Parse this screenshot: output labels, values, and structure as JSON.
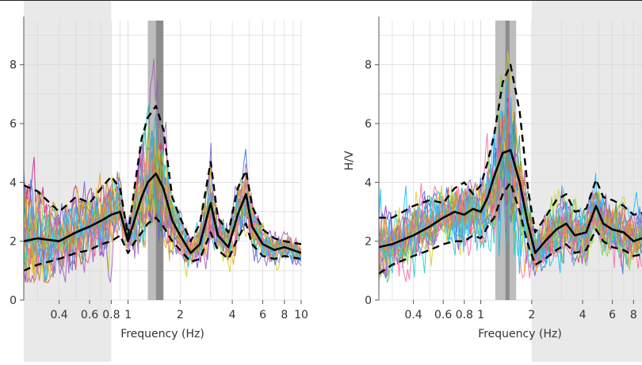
{
  "chart_data": [
    {
      "type": "line",
      "xlabel": "Frequency (Hz)",
      "ylabel": "",
      "xscale": "log",
      "xlim": [
        0.25,
        10
      ],
      "ylim": [
        0,
        9.5
      ],
      "grid": true,
      "x_ticks": [
        0.4,
        0.6,
        0.8,
        1,
        2,
        4,
        6,
        8,
        10
      ],
      "x_tick_labels": [
        "0.4",
        "0.6",
        "0.8",
        "1",
        "2",
        "4",
        "6",
        "8",
        "10"
      ],
      "y_ticks": [
        0,
        2,
        4,
        6,
        8
      ],
      "y_tick_labels": [
        "0",
        "2",
        "4",
        "6",
        "8"
      ],
      "shaded_ranges": [
        [
          0.25,
          0.8
        ]
      ],
      "peak_band": {
        "x": [
          1.3,
          1.6
        ],
        "core": [
          1.45,
          1.6
        ]
      },
      "series": [
        {
          "role": "mean",
          "style": "solid",
          "x": [
            0.25,
            0.3,
            0.4,
            0.5,
            0.6,
            0.7,
            0.8,
            0.9,
            1.0,
            1.1,
            1.2,
            1.3,
            1.45,
            1.6,
            1.8,
            2.0,
            2.3,
            2.6,
            3.0,
            3.3,
            3.8,
            4.3,
            4.8,
            5.2,
            6.0,
            7.0,
            8.0,
            10.0
          ],
          "values": [
            2.0,
            2.1,
            2.0,
            2.3,
            2.5,
            2.7,
            2.9,
            3.0,
            2.0,
            2.8,
            3.5,
            4.0,
            4.3,
            3.8,
            2.7,
            2.2,
            1.6,
            1.9,
            3.3,
            2.2,
            1.8,
            2.9,
            3.6,
            2.5,
            1.9,
            1.7,
            1.8,
            1.6
          ]
        },
        {
          "role": "upper",
          "style": "dashed",
          "x": [
            0.25,
            0.3,
            0.4,
            0.5,
            0.6,
            0.7,
            0.8,
            0.9,
            1.0,
            1.1,
            1.2,
            1.3,
            1.45,
            1.6,
            1.8,
            2.0,
            2.3,
            2.6,
            3.0,
            3.3,
            3.8,
            4.3,
            4.8,
            5.2,
            6.0,
            7.0,
            8.0,
            10.0
          ],
          "values": [
            3.9,
            3.7,
            3.0,
            3.5,
            3.3,
            3.8,
            4.2,
            3.8,
            2.2,
            4.0,
            5.5,
            6.2,
            6.6,
            5.8,
            3.5,
            2.8,
            2.0,
            2.6,
            4.7,
            2.8,
            2.3,
            3.8,
            4.4,
            3.2,
            2.4,
            2.1,
            2.0,
            1.9
          ]
        },
        {
          "role": "lower",
          "style": "dashed",
          "x": [
            0.25,
            0.3,
            0.4,
            0.5,
            0.6,
            0.7,
            0.8,
            0.9,
            1.0,
            1.1,
            1.2,
            1.3,
            1.45,
            1.6,
            1.8,
            2.0,
            2.3,
            2.6,
            3.0,
            3.3,
            3.8,
            4.3,
            4.8,
            5.2,
            6.0,
            7.0,
            8.0,
            10.0
          ],
          "values": [
            1.0,
            1.2,
            1.4,
            1.6,
            1.7,
            1.9,
            2.0,
            2.2,
            1.6,
            2.0,
            2.3,
            2.6,
            2.8,
            2.5,
            2.0,
            1.7,
            1.3,
            1.4,
            2.3,
            1.7,
            1.4,
            2.1,
            2.6,
            1.9,
            1.5,
            1.4,
            1.5,
            1.4
          ]
        }
      ]
    },
    {
      "type": "line",
      "xlabel": "Frequency (Hz)",
      "ylabel": "H/V",
      "xscale": "log",
      "xlim": [
        0.25,
        10
      ],
      "ylim": [
        0,
        9.5
      ],
      "grid": true,
      "x_ticks": [
        0.4,
        0.6,
        0.8,
        1,
        2,
        4,
        6,
        8
      ],
      "x_tick_labels": [
        "0.4",
        "0.6",
        "0.8",
        "1",
        "2",
        "4",
        "6",
        "8"
      ],
      "y_ticks": [
        0,
        2,
        4,
        6,
        8
      ],
      "y_tick_labels": [
        "0",
        "2",
        "4",
        "6",
        "8"
      ],
      "shaded_ranges": [
        [
          2.0,
          10
        ]
      ],
      "peak_band": {
        "x": [
          1.22,
          1.62
        ],
        "core": [
          1.4,
          1.48
        ]
      },
      "series": [
        {
          "role": "mean",
          "style": "solid",
          "x": [
            0.25,
            0.3,
            0.4,
            0.5,
            0.6,
            0.7,
            0.8,
            0.9,
            1.0,
            1.1,
            1.2,
            1.35,
            1.5,
            1.7,
            1.9,
            2.1,
            2.4,
            2.8,
            3.2,
            3.6,
            4.2,
            4.8,
            5.3,
            6.0,
            7.0,
            8.0,
            10.0
          ],
          "values": [
            1.8,
            1.9,
            2.2,
            2.5,
            2.8,
            3.0,
            2.9,
            3.1,
            3.0,
            3.5,
            4.2,
            5.0,
            5.1,
            4.0,
            2.6,
            1.6,
            2.0,
            2.4,
            2.6,
            2.2,
            2.3,
            3.2,
            2.6,
            2.4,
            2.3,
            2.0,
            2.2
          ]
        },
        {
          "role": "upper",
          "style": "dashed",
          "x": [
            0.25,
            0.3,
            0.4,
            0.5,
            0.6,
            0.7,
            0.8,
            0.9,
            1.0,
            1.1,
            1.2,
            1.35,
            1.5,
            1.7,
            1.9,
            2.1,
            2.4,
            2.8,
            3.2,
            3.6,
            4.2,
            4.8,
            5.3,
            6.0,
            7.0,
            8.0,
            10.0
          ],
          "values": [
            2.8,
            2.8,
            3.2,
            3.4,
            3.3,
            3.8,
            4.0,
            3.6,
            3.9,
            4.7,
            5.6,
            7.4,
            8.0,
            6.4,
            3.8,
            2.3,
            2.8,
            3.4,
            3.6,
            3.0,
            3.1,
            4.1,
            3.5,
            3.4,
            3.2,
            2.9,
            3.0
          ]
        },
        {
          "role": "lower",
          "style": "dashed",
          "x": [
            0.25,
            0.3,
            0.4,
            0.5,
            0.6,
            0.7,
            0.8,
            0.9,
            1.0,
            1.1,
            1.2,
            1.35,
            1.5,
            1.7,
            1.9,
            2.1,
            2.4,
            2.8,
            3.2,
            3.6,
            4.2,
            4.8,
            5.3,
            6.0,
            7.0,
            8.0,
            10.0
          ],
          "values": [
            0.9,
            1.2,
            1.5,
            1.7,
            1.9,
            2.0,
            2.0,
            2.2,
            2.1,
            2.5,
            2.8,
            3.6,
            4.0,
            3.0,
            1.9,
            1.2,
            1.4,
            1.7,
            1.9,
            1.6,
            1.7,
            2.4,
            2.0,
            1.8,
            1.7,
            1.5,
            1.6
          ]
        }
      ]
    }
  ],
  "trace_colors": [
    "#e0342a",
    "#c71585",
    "#2f6fd6",
    "#1fa34a",
    "#ff8c1a",
    "#8a2be2",
    "#1ec8c8",
    "#d6cf1a",
    "#ff5fa0",
    "#39b54a",
    "#5ab0ff",
    "#9b59b6",
    "#f0a020",
    "#20b2aa",
    "#e84d8a",
    "#6a5acd",
    "#7fd13b",
    "#ff6347",
    "#00bfff",
    "#b8860b"
  ],
  "colors": {
    "shade": "#e9e9e9",
    "band_outer": "#bdbdbd",
    "band_core": "#8c8c8c",
    "grid": "#d8d8d8",
    "axis": "#555555",
    "mean": "#000000"
  }
}
